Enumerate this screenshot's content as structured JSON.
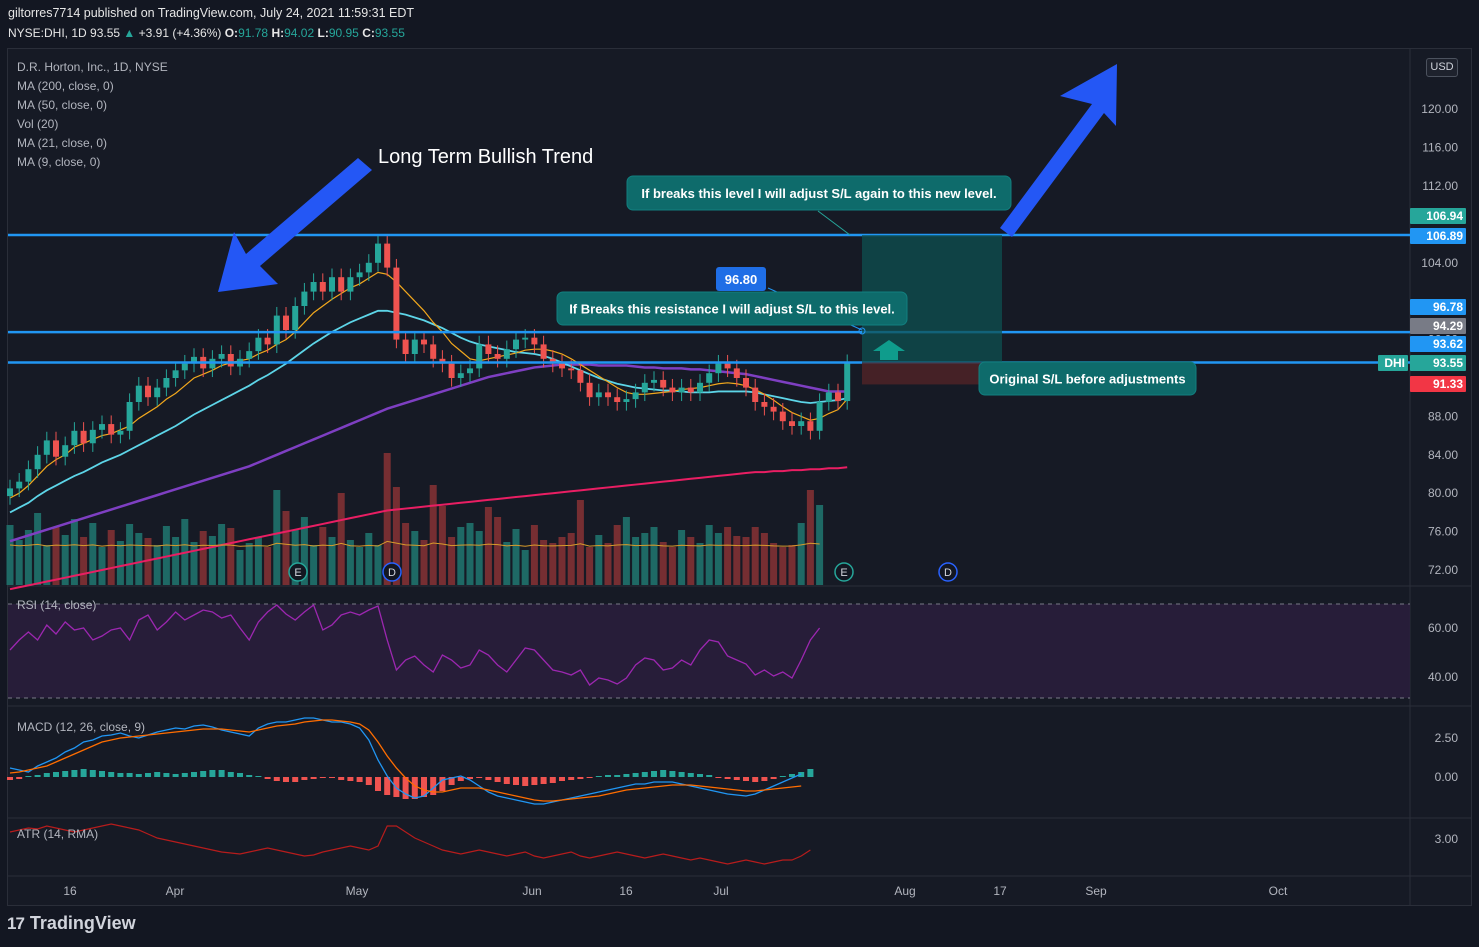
{
  "header": {
    "published": "giltorres7714 published on TradingView.com, July 24, 2021 11:59:31 EDT",
    "symbol": "NYSE:DHI, 1D",
    "price": "93.55",
    "change": "+3.91 (+4.36%)",
    "o": "91.78",
    "h": "94.02",
    "l": "90.95",
    "c": "93.55"
  },
  "legends": {
    "title": "D.R. Horton, Inc., 1D, NYSE",
    "ma200": "MA (200, close, 0)",
    "ma50": "MA (50, close, 0)",
    "vol": "Vol (20)",
    "ma21": "MA (21, close, 0)",
    "ma9": "MA (9, close, 0)",
    "rsi": "RSI (14, close)",
    "macd": "MACD (12, 26, close, 9)",
    "atr": "ATR (14, RMA)"
  },
  "currency": "USD",
  "annotations": {
    "trend": "Long Term Bullish Trend",
    "break_top": "If breaks this level I will adjust S/L again to this new level.",
    "break_res": "If Breaks this resistance I will adjust S/L to this level.",
    "orig_sl": "Original S/L before adjustments",
    "label_9680": "96.80"
  },
  "price_tags": [
    {
      "text": "106.94",
      "color": "#26a69a"
    },
    {
      "text": "106.89",
      "color": "#2196f3"
    },
    {
      "text": "96.78",
      "color": "#2196f3"
    },
    {
      "text": "94.29",
      "color": "#787b86"
    },
    {
      "text": "93.62",
      "color": "#2196f3"
    },
    {
      "text": "DHI",
      "color": "#26a69a"
    },
    {
      "text": "93.55",
      "color": "#26a69a"
    },
    {
      "text": "91.33",
      "color": "#f23645"
    }
  ],
  "footer": {
    "brand": "TradingView"
  },
  "chart_data": {
    "type": "candlestick",
    "symbol": "DHI",
    "price_axis": {
      "ticks": [
        72,
        76,
        80,
        84,
        88,
        92,
        96,
        100,
        104,
        108,
        112,
        116,
        120,
        124
      ],
      "tick_labels": [
        "72.00",
        "76.00",
        "80.00",
        "84.00",
        "88.00",
        "",
        "96.00",
        "",
        "104.00",
        "",
        "112.00",
        "116.00",
        "120.00",
        ""
      ]
    },
    "rsi_axis": {
      "tick_labels": [
        "40.00",
        "60.00"
      ]
    },
    "macd_axis": {
      "tick_labels": [
        "0.00",
        "2.50"
      ]
    },
    "atr_axis": {
      "tick_labels": [
        "3.00"
      ]
    },
    "time_axis": [
      "16",
      "Apr",
      "May",
      "Jun",
      "16",
      "Jul",
      "Aug",
      "17",
      "Sep",
      "Oct"
    ],
    "horizontal_lines": [
      106.89,
      96.78,
      93.62
    ],
    "closes": [
      80.5,
      81.2,
      82.5,
      84.0,
      85.5,
      83.8,
      85.0,
      86.5,
      85.2,
      86.6,
      87.2,
      86.1,
      86.5,
      89.5,
      91.2,
      90.0,
      91.0,
      92.0,
      92.8,
      93.5,
      94.2,
      93.0,
      94.0,
      94.5,
      93.2,
      94.0,
      94.8,
      96.2,
      95.5,
      98.5,
      97.0,
      99.5,
      101.0,
      102.0,
      101.0,
      102.5,
      101.0,
      102.5,
      103.0,
      104.0,
      106.0,
      103.5,
      96.0,
      94.5,
      96.0,
      95.5,
      94.0,
      93.5,
      92.0,
      92.5,
      93.0,
      95.5,
      94.5,
      94.0,
      95.0,
      96.0,
      96.2,
      95.5,
      94.0,
      93.5,
      93.0,
      92.8,
      91.5,
      90.0,
      90.5,
      90.0,
      89.5,
      89.8,
      90.5,
      91.5,
      91.8,
      91.0,
      90.5,
      91.0,
      90.5,
      91.5,
      92.5,
      93.5,
      93.0,
      92.0,
      91.0,
      89.5,
      89.0,
      88.5,
      87.5,
      87.0,
      87.5,
      86.5,
      89.5,
      90.5,
      89.6,
      93.55
    ],
    "ma9": [
      79.5,
      80.0,
      80.8,
      81.8,
      82.8,
      83.5,
      84.0,
      84.8,
      85.2,
      85.6,
      86.0,
      86.2,
      86.6,
      87.0,
      87.8,
      88.4,
      89.0,
      89.8,
      90.4,
      91.2,
      92.0,
      92.4,
      92.8,
      93.3,
      93.6,
      93.8,
      94.0,
      94.5,
      94.9,
      95.5,
      96.0,
      96.8,
      97.8,
      98.8,
      99.5,
      100.2,
      100.8,
      101.4,
      101.8,
      102.4,
      103.0,
      102.8,
      102.0,
      101.0,
      100.0,
      99.0,
      97.8,
      96.8,
      95.6,
      94.8,
      94.0,
      93.8,
      94.0,
      94.2,
      94.4,
      94.6,
      94.9,
      95.0,
      95.0,
      94.8,
      94.5,
      94.0,
      93.4,
      92.8,
      92.2,
      91.6,
      91.0,
      90.5,
      90.3,
      90.3,
      90.4,
      90.5,
      90.6,
      90.8,
      90.9,
      91.0,
      91.2,
      91.4,
      91.5,
      91.4,
      91.2,
      90.8,
      90.3,
      89.7,
      89.0,
      88.4,
      88.0,
      87.6,
      87.8,
      88.3,
      88.7,
      89.8
    ],
    "ma21": [
      78.0,
      78.5,
      79.0,
      79.7,
      80.3,
      80.8,
      81.3,
      81.8,
      82.2,
      82.7,
      83.2,
      83.6,
      84.0,
      84.5,
      85.0,
      85.5,
      86.0,
      86.5,
      87.0,
      87.6,
      88.2,
      88.7,
      89.2,
      89.7,
      90.2,
      90.7,
      91.2,
      91.8,
      92.3,
      92.9,
      93.5,
      94.2,
      94.9,
      95.6,
      96.2,
      96.8,
      97.3,
      97.8,
      98.2,
      98.6,
      99.0,
      99.0,
      98.8,
      98.6,
      98.3,
      98.0,
      97.6,
      97.2,
      96.7,
      96.2,
      95.8,
      95.5,
      95.3,
      95.1,
      94.9,
      94.7,
      94.6,
      94.5,
      94.3,
      94.0,
      93.6,
      93.2,
      92.8,
      92.4,
      92.0,
      91.7,
      91.4,
      91.2,
      91.0,
      90.9,
      90.8,
      90.7,
      90.7,
      90.6,
      90.5,
      90.5,
      90.5,
      90.6,
      90.6,
      90.6,
      90.6,
      90.5,
      90.3,
      90.1,
      89.9,
      89.7,
      89.5,
      89.4,
      89.5,
      89.6,
      89.7,
      89.9
    ],
    "ma50": [
      75.0,
      75.3,
      75.6,
      75.9,
      76.2,
      76.5,
      76.8,
      77.1,
      77.4,
      77.7,
      78.0,
      78.3,
      78.6,
      78.9,
      79.2,
      79.5,
      79.8,
      80.1,
      80.4,
      80.7,
      81.0,
      81.3,
      81.6,
      81.9,
      82.2,
      82.5,
      82.8,
      83.2,
      83.6,
      84.0,
      84.4,
      84.8,
      85.2,
      85.6,
      86.0,
      86.4,
      86.8,
      87.2,
      87.6,
      88.0,
      88.4,
      88.8,
      89.1,
      89.4,
      89.7,
      90.0,
      90.3,
      90.6,
      90.9,
      91.2,
      91.5,
      91.8,
      92.1,
      92.3,
      92.5,
      92.7,
      92.9,
      93.1,
      93.2,
      93.3,
      93.4,
      93.4,
      93.4,
      93.4,
      93.3,
      93.3,
      93.3,
      93.3,
      93.2,
      93.1,
      93.1,
      93.0,
      93.0,
      93.0,
      92.9,
      92.9,
      92.8,
      92.7,
      92.6,
      92.5,
      92.4,
      92.2,
      92.0,
      91.8,
      91.6,
      91.4,
      91.2,
      91.0,
      90.8,
      90.6,
      90.6,
      90.6
    ],
    "ma200": [
      70.0,
      70.2,
      70.4,
      70.6,
      70.8,
      71.0,
      71.2,
      71.4,
      71.6,
      71.8,
      72.0,
      72.2,
      72.4,
      72.6,
      72.8,
      73.0,
      73.2,
      73.4,
      73.6,
      73.8,
      74.0,
      74.2,
      74.4,
      74.6,
      74.8,
      75.0,
      75.2,
      75.4,
      75.6,
      75.8,
      76.0,
      76.2,
      76.4,
      76.6,
      76.8,
      77.0,
      77.2,
      77.4,
      77.6,
      77.8,
      78.0,
      78.2,
      78.3,
      78.4,
      78.5,
      78.6,
      78.7,
      78.8,
      78.9,
      79.0,
      79.1,
      79.2,
      79.3,
      79.4,
      79.5,
      79.6,
      79.7,
      79.8,
      79.9,
      80.0,
      80.1,
      80.2,
      80.3,
      80.4,
      80.5,
      80.6,
      80.7,
      80.8,
      80.9,
      81.0,
      81.1,
      81.2,
      81.3,
      81.4,
      81.5,
      81.6,
      81.7,
      81.8,
      81.9,
      82.0,
      82.1,
      82.2,
      82.2,
      82.3,
      82.3,
      82.4,
      82.4,
      82.5,
      82.5,
      82.6,
      82.6,
      82.7
    ]
  },
  "colors": {
    "up": "#26a69a",
    "down": "#ef5350",
    "ma9": "#f2a81d",
    "ma21": "#5dd5e8",
    "ma50": "#7e3fc2",
    "ma200": "#e91e63",
    "hline": "#2196f3",
    "arrow": "#2457f5",
    "note": "#0e6b6b",
    "rsi": "#9c27b0",
    "macd": "#2196f3",
    "signal": "#ff6d00",
    "atr": "#b71c1c"
  }
}
